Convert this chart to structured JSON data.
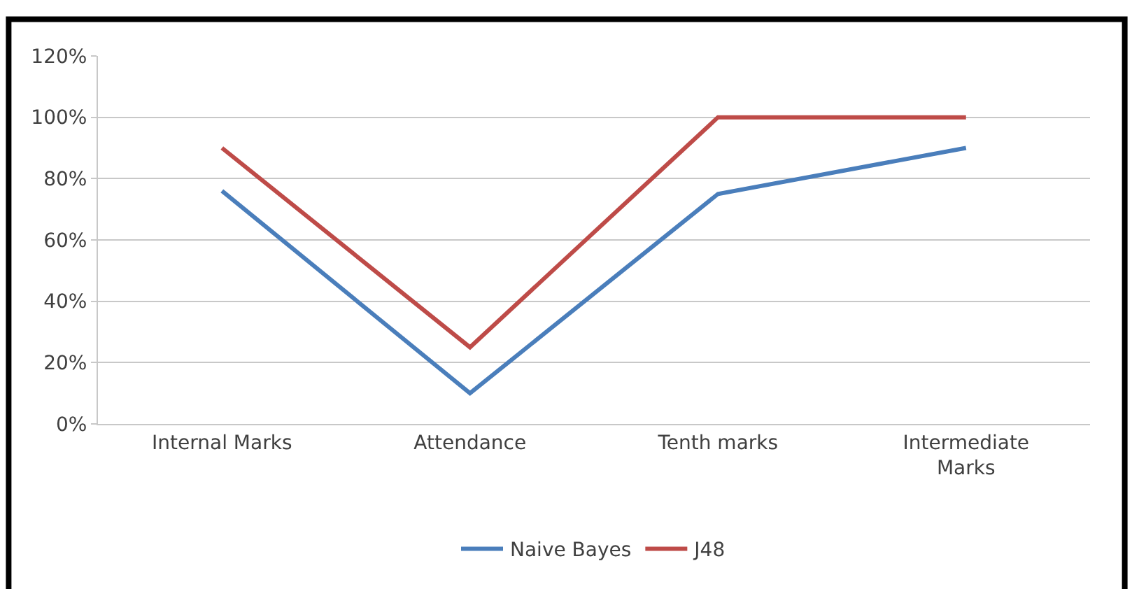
{
  "chart_data": {
    "type": "line",
    "categories": [
      "Internal Marks",
      "Attendance",
      "Tenth marks",
      "Intermediate Marks"
    ],
    "series": [
      {
        "name": "Naive Bayes",
        "color": "#4a7ebb",
        "values": [
          76,
          10,
          75,
          90
        ]
      },
      {
        "name": "J48",
        "color": "#be4b48",
        "values": [
          90,
          25,
          100,
          100
        ]
      }
    ],
    "ylim": [
      0,
      120
    ],
    "yticks": [
      {
        "value": 0,
        "label": "0%"
      },
      {
        "value": 20,
        "label": "20%"
      },
      {
        "value": 40,
        "label": "40%"
      },
      {
        "value": 60,
        "label": "60%"
      },
      {
        "value": 80,
        "label": "80%"
      },
      {
        "value": 100,
        "label": "100%"
      },
      {
        "value": 120,
        "label": "120%"
      }
    ],
    "grid": "y",
    "legend": "bottom",
    "marker": "none",
    "line_style": "solid"
  }
}
